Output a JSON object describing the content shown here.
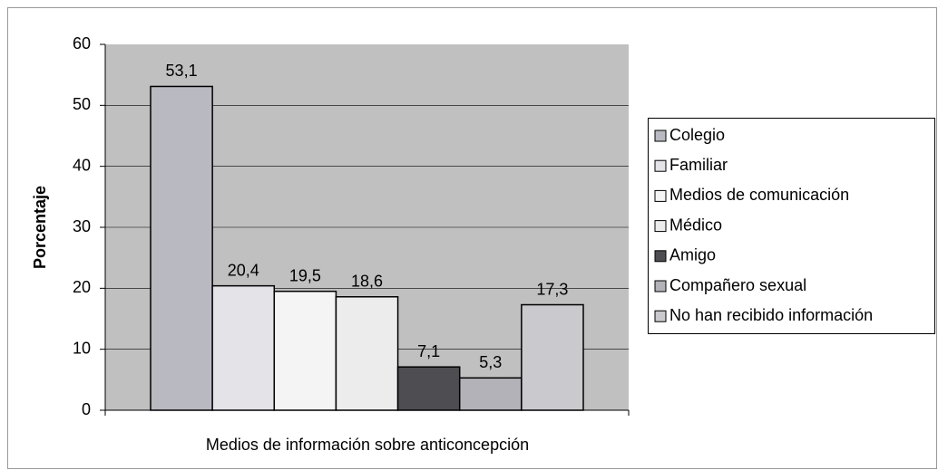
{
  "chart_data": {
    "type": "bar",
    "xlabel": "Medios de información sobre anticoncepción",
    "ylabel": "Porcentaje",
    "categories": [
      null
    ],
    "series": [
      {
        "name": "Colegio",
        "color": "#b9b9c1",
        "values": [
          53.1
        ],
        "value_labels": [
          "53,1"
        ]
      },
      {
        "name": "Familiar",
        "color": "#e3e3e8",
        "values": [
          20.4
        ],
        "value_labels": [
          "20,4"
        ]
      },
      {
        "name": "Medios de comunicación",
        "color": "#f4f4f4",
        "values": [
          19.5
        ],
        "value_labels": [
          "19,5"
        ]
      },
      {
        "name": "Médico",
        "color": "#ececec",
        "values": [
          18.6
        ],
        "value_labels": [
          "18,6"
        ]
      },
      {
        "name": "Amigo",
        "color": "#4d4d52",
        "values": [
          7.1
        ],
        "value_labels": [
          "7,1"
        ]
      },
      {
        "name": "Compañero sexual",
        "color": "#b2b2b8",
        "values": [
          5.3
        ],
        "value_labels": [
          "5,3"
        ]
      },
      {
        "name": "No han recibido información",
        "color": "#c9c9ce",
        "values": [
          17.3
        ],
        "value_labels": [
          "17,3"
        ]
      }
    ],
    "ylim": [
      0,
      60
    ],
    "yticks": [
      0,
      10,
      20,
      30,
      40,
      50,
      60
    ],
    "grid": true,
    "legend": "right"
  }
}
